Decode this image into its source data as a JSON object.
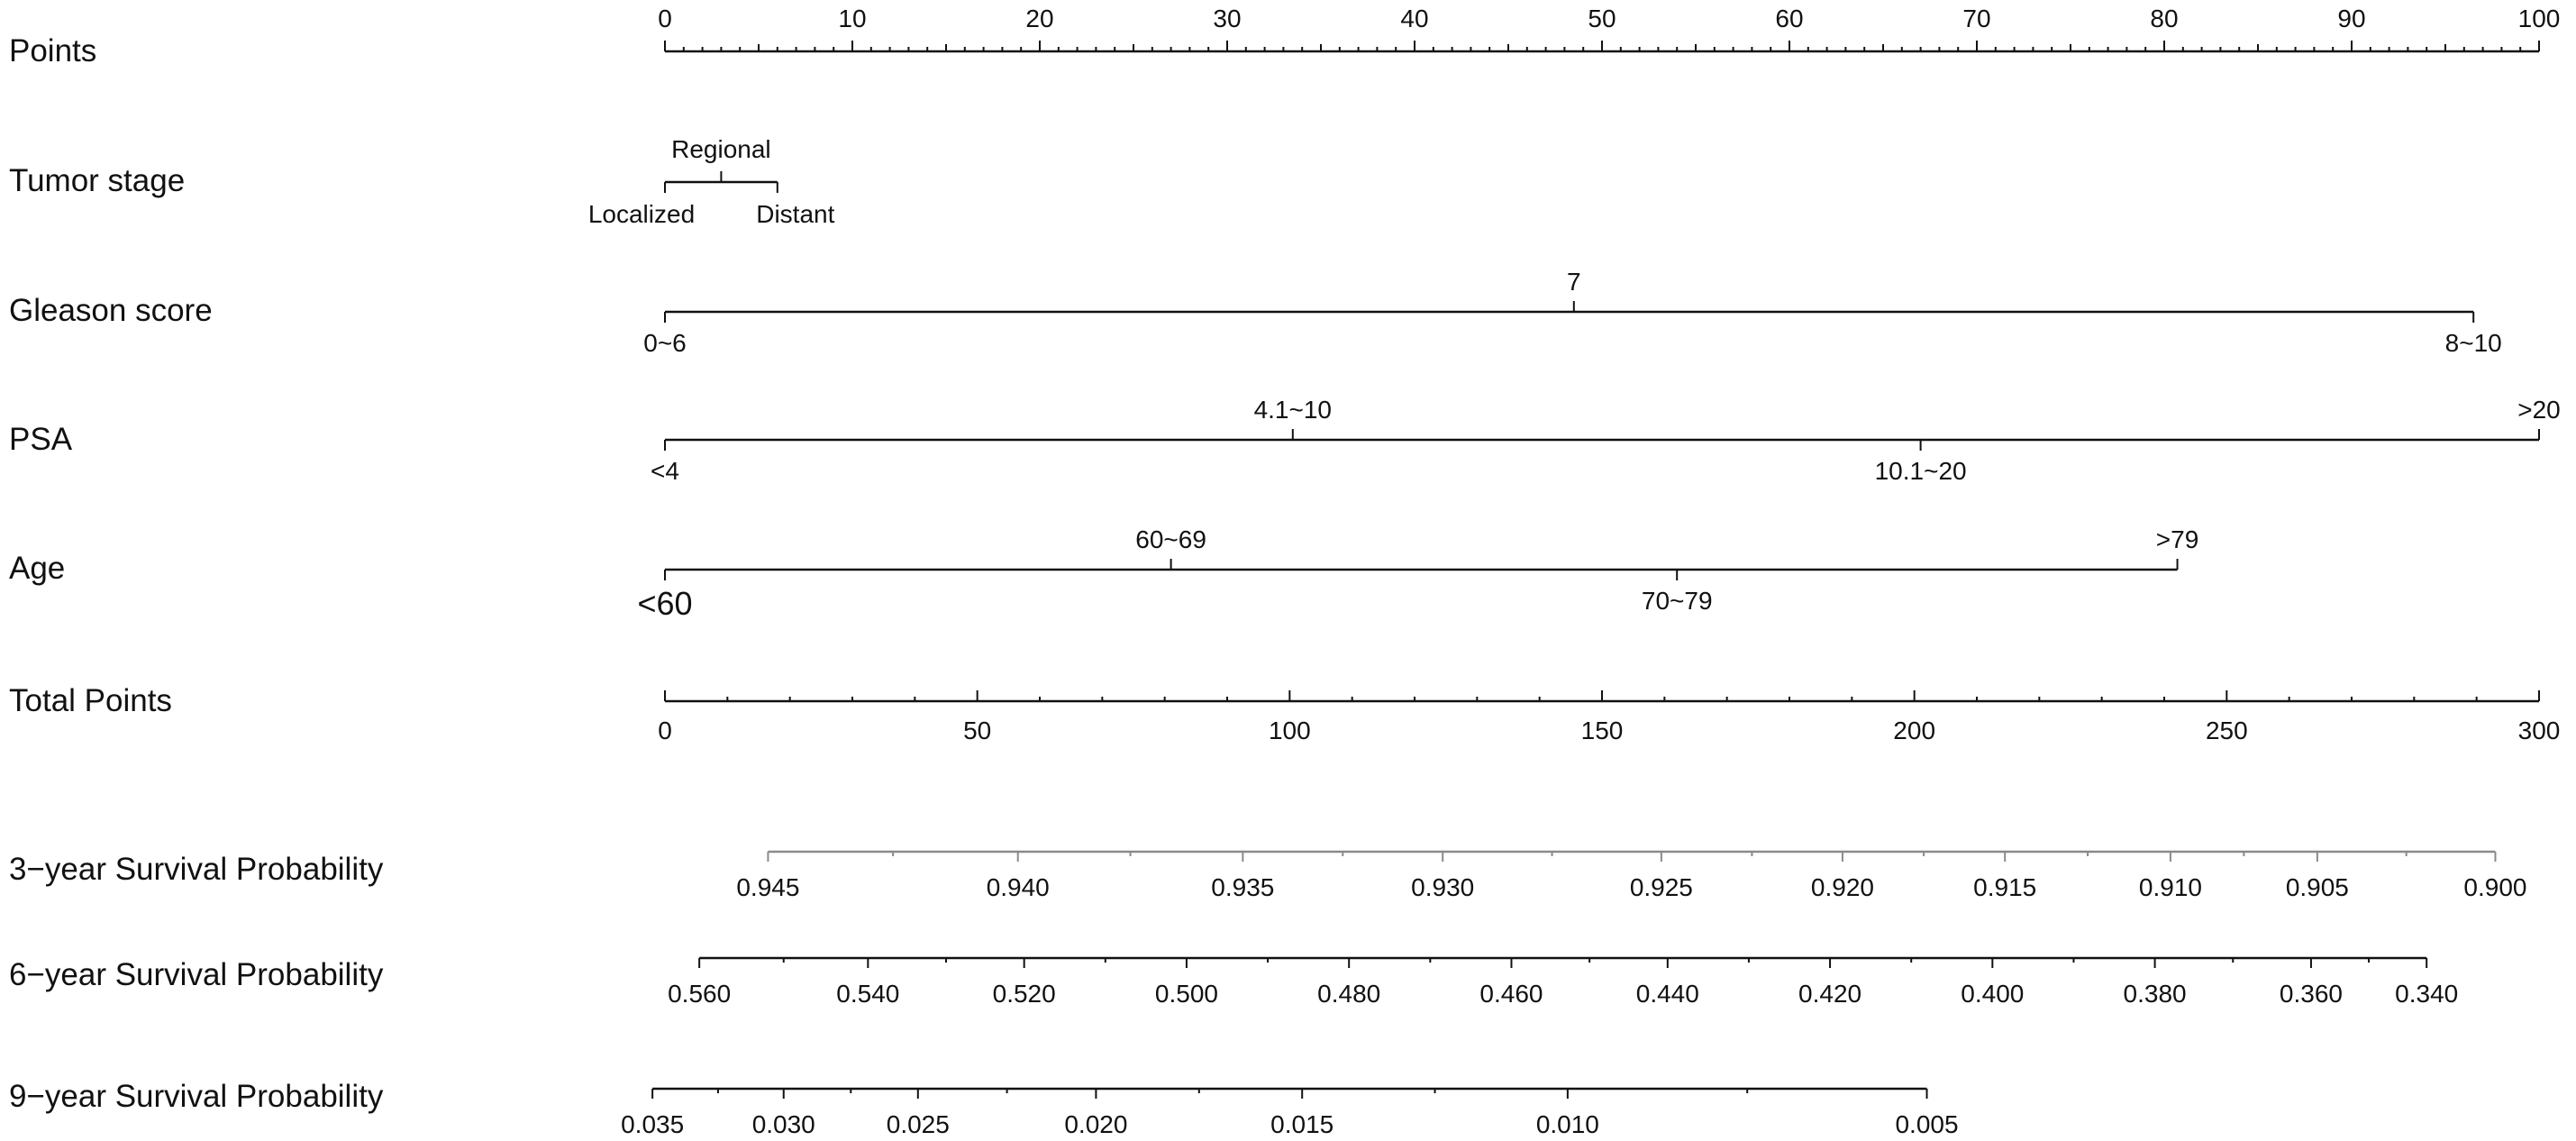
{
  "chart_data": {
    "type": "nomogram",
    "rows": [
      {
        "id": "points",
        "label": "Points",
        "kind": "numeric",
        "range": [
          0,
          100
        ],
        "labels": [
          "0",
          "10",
          "20",
          "30",
          "40",
          "50",
          "60",
          "70",
          "80",
          "90",
          "100"
        ],
        "major_step": 10,
        "minor_step": 1,
        "label_side": "above"
      },
      {
        "id": "tumor-stage",
        "label": "Tumor stage",
        "kind": "categorical",
        "categories": [
          {
            "name": "Localized",
            "points": 0,
            "side": "below"
          },
          {
            "name": "Regional",
            "points": 3,
            "side": "above"
          },
          {
            "name": "Distant",
            "points": 6,
            "side": "below"
          }
        ]
      },
      {
        "id": "gleason-score",
        "label": "Gleason score",
        "kind": "categorical",
        "categories": [
          {
            "name": "0~6",
            "points": 0,
            "side": "below"
          },
          {
            "name": "7",
            "points": 48.5,
            "side": "above"
          },
          {
            "name": "8~10",
            "points": 96.5,
            "side": "below"
          }
        ]
      },
      {
        "id": "psa",
        "label": "PSA",
        "kind": "categorical",
        "categories": [
          {
            "name": "<4",
            "points": 0,
            "side": "below"
          },
          {
            "name": "4.1~10",
            "points": 33.5,
            "side": "above"
          },
          {
            "name": "10.1~20",
            "points": 67,
            "side": "below"
          },
          {
            "name": ">20",
            "points": 100,
            "side": "above"
          }
        ]
      },
      {
        "id": "age",
        "label": "Age",
        "kind": "categorical",
        "categories": [
          {
            "name": "<60",
            "points": 0,
            "side": "below"
          },
          {
            "name": "60~69",
            "points": 27,
            "side": "above"
          },
          {
            "name": "70~79",
            "points": 54,
            "side": "below"
          },
          {
            "name": ">79",
            "points": 80.7,
            "side": "above"
          }
        ]
      },
      {
        "id": "total-points",
        "label": "Total Points",
        "kind": "numeric",
        "range": [
          0,
          300
        ],
        "labels": [
          "0",
          "50",
          "100",
          "150",
          "200",
          "250",
          "300"
        ],
        "major_step": 50,
        "minor_step": 10,
        "label_side": "below"
      },
      {
        "id": "survival-3y",
        "label": "3−year Survival Probability",
        "kind": "probability",
        "color": "#8a8a8a",
        "axis_extent_total_points": [
          16.5,
          293
        ],
        "ticks": [
          {
            "value": "0.945",
            "total_points": 16.5
          },
          {
            "value": "0.940",
            "total_points": 56.5
          },
          {
            "value": "0.935",
            "total_points": 92.5
          },
          {
            "value": "0.930",
            "total_points": 124.5
          },
          {
            "value": "0.925",
            "total_points": 159.5
          },
          {
            "value": "0.920",
            "total_points": 188.5
          },
          {
            "value": "0.915",
            "total_points": 214.5
          },
          {
            "value": "0.910",
            "total_points": 241
          },
          {
            "value": "0.905",
            "total_points": 264.5
          },
          {
            "value": "0.900",
            "total_points": 293
          }
        ]
      },
      {
        "id": "survival-6y",
        "label": "6−year Survival Probability",
        "kind": "probability",
        "color": "#111111",
        "axis_extent_total_points": [
          5.5,
          282
        ],
        "ticks": [
          {
            "value": "0.560",
            "total_points": 5.5
          },
          {
            "value": "0.540",
            "total_points": 32.5
          },
          {
            "value": "0.520",
            "total_points": 57.5
          },
          {
            "value": "0.500",
            "total_points": 83.5
          },
          {
            "value": "0.480",
            "total_points": 109.5
          },
          {
            "value": "0.460",
            "total_points": 135.5
          },
          {
            "value": "0.440",
            "total_points": 160.5
          },
          {
            "value": "0.420",
            "total_points": 186.5
          },
          {
            "value": "0.400",
            "total_points": 212.5
          },
          {
            "value": "0.380",
            "total_points": 238.5
          },
          {
            "value": "0.360",
            "total_points": 263.5
          },
          {
            "value": "0.340",
            "total_points": 282
          }
        ]
      },
      {
        "id": "survival-9y",
        "label": "9−year Survival Probability",
        "kind": "probability",
        "color": "#111111",
        "axis_extent_total_points": [
          -2,
          202
        ],
        "ticks": [
          {
            "value": "0.035",
            "total_points": -2
          },
          {
            "value": "0.030",
            "total_points": 19
          },
          {
            "value": "0.025",
            "total_points": 40.5
          },
          {
            "value": "0.020",
            "total_points": 69
          },
          {
            "value": "0.015",
            "total_points": 102
          },
          {
            "value": "0.010",
            "total_points": 144.5
          },
          {
            "value": "0.005",
            "total_points": 202
          }
        ]
      }
    ]
  }
}
